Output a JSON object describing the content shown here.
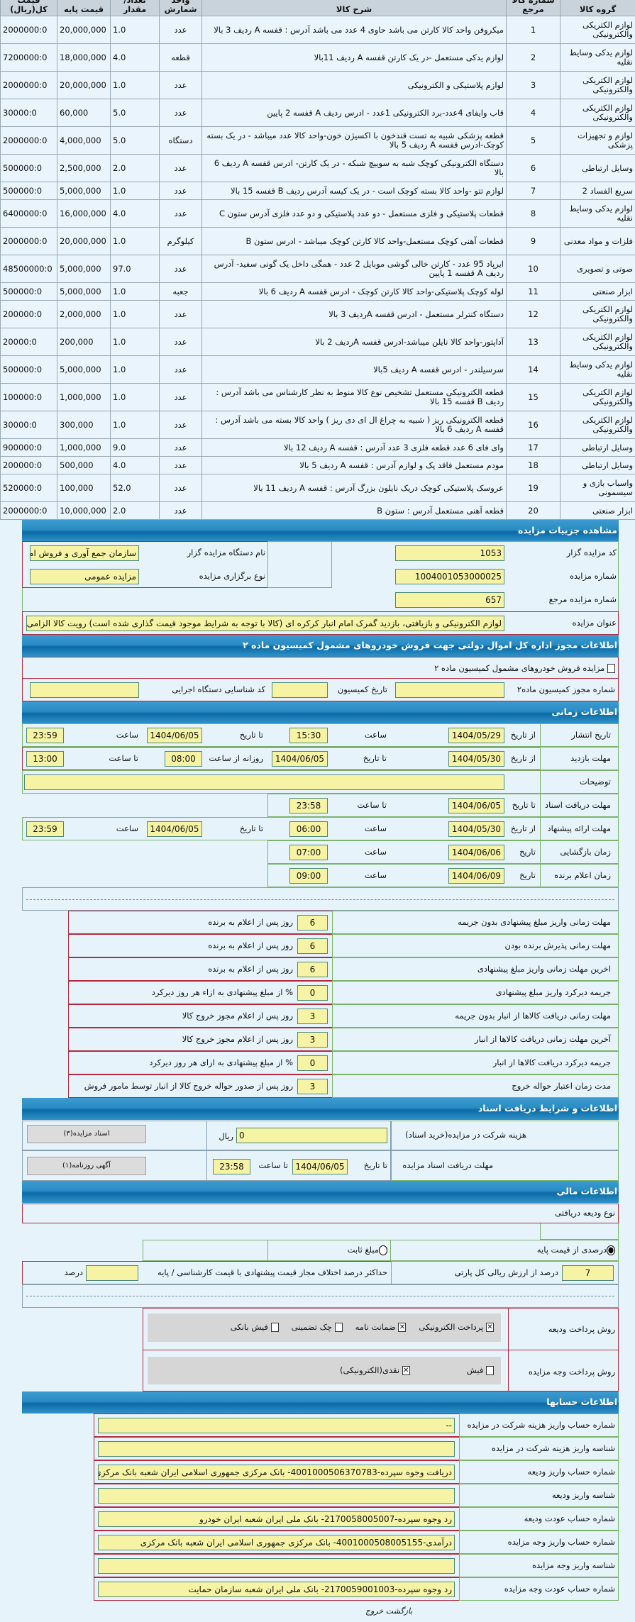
{
  "items_table": {
    "headers": [
      "گروه کالا",
      "شماره کالا مرجع",
      "شرح کالا",
      "واحد شمارش",
      "تعداد/مقدار",
      "قیمت پایه",
      "قیمت کل(ریال)"
    ],
    "rows": [
      [
        "لوازم الکتریکی والکترونیکی",
        "1",
        "میکروفن واحد کالا کارتن می باشد حاوی 4 عدد می باشد آدرس : قفسه A ردیف 3 بالا",
        "عدد",
        "1.0",
        "20,000,000",
        "2000000:0"
      ],
      [
        "لوازم یدکی وسایط نقلیه",
        "2",
        "لوازم یدکی مستعمل -در یک کارتن قفسه A ردیف 11بالا",
        "قطعه",
        "4.0",
        "18,000,000",
        "7200000:0"
      ],
      [
        "لوازم الکتریکی والکترونیکی",
        "3",
        "لوازم پلاستیکی و الکترونیکی",
        "عدد",
        "1.0",
        "20,000,000",
        "2000000:0"
      ],
      [
        "لوازم الکتریکی والکترونیکی",
        "4",
        "قاب وایفای 4عدد-برد الکترونیکی 1عدد - ادرس ردیف A قفسه 2 پایین",
        "عدد",
        "5.0",
        "60,000",
        "30000:0"
      ],
      [
        "لوازم و تجهیزات پزشکی",
        "5",
        "قطعه پزشکی شبیه به تست قندخون با اکسیژن خون-واحد کالا عدد میباشد - در یک بسته کوچک-ادرس قفسه A ردیف 5 بالا",
        "دستگاه",
        "5.0",
        "4,000,000",
        "2000000:0"
      ],
      [
        "وسایل ارتباطی",
        "6",
        "دستگاه الکترونیکی کوچک شبه به سوییچ شبکه - در یک کارتن- ادرس قفسه A ردیف 6 بالا",
        "عدد",
        "2.0",
        "2,500,000",
        "500000:0"
      ],
      [
        "سریع الفساد 2",
        "7",
        "لوازم تتو -واحد کالا بسته کوچک است - در یک کیسه آدرس ردیف B قفسه 15 بالا",
        "عدد",
        "1.0",
        "5,000,000",
        "500000:0"
      ],
      [
        "لوازم یدکی وسایط نقلیه",
        "8",
        "قطعات پلاستیکی و فلزی مستعمل - دو عدد پلاستیکی و دو عدد فلزی آدرس ستون C",
        "عدد",
        "4.0",
        "16,000,000",
        "6400000:0"
      ],
      [
        "فلزات و مواد معدنی",
        "9",
        "قطعات آهنی کوچک مستعمل-واحد کالا کارتن کوچک میباشد - ادرس ستون B",
        "کیلوگرم",
        "1.0",
        "20,000,000",
        "2000000:0"
      ],
      [
        "صوتی و تصویری",
        "10",
        "ایرپاد 95 عدد - کارتن خالی گوشی موبایل 2 عدد - همگی داخل یک گونی سفید- آدرس ردیف A قفسه 1 پایین",
        "عدد",
        "97.0",
        "5,000,000",
        "48500000:0"
      ],
      [
        "ابزار صنعتی",
        "11",
        "لوله کوچک پلاستیکی-واحد کالا کارتن کوچک - ادرس قفسه A ردیف 6 بالا",
        "جعبه",
        "1.0",
        "5,000,000",
        "500000:0"
      ],
      [
        "لوازم الکتریکی والکترونیکی",
        "12",
        "دستگاه کنترلر مستعمل - ادرس قفسه Aردیف 3 بالا",
        "عدد",
        "1.0",
        "2,000,000",
        "200000:0"
      ],
      [
        "لوازم الکتریکی والکترونیکی",
        "13",
        "آداپتور-واحد کالا نایلن میباشد-ادرس قفسه Aردیف 2 بالا",
        "عدد",
        "1.0",
        "200,000",
        "20000:0"
      ],
      [
        "لوازم یدکی وسایط نقلیه",
        "14",
        "سرسیلندر - ادرس قفسه A ردیف 5بالا",
        "عدد",
        "1.0",
        "5,000,000",
        "500000:0"
      ],
      [
        "لوازم الکتریکی والکترونیکی",
        "15",
        "قطعه الکترونیکی مستعمل تشخیص نوع کالا منوط به نظر کارشناس می باشد آدرس : ردیف B قفسه 15 بالا",
        "عدد",
        "1.0",
        "1,000,000",
        "100000:0"
      ],
      [
        "لوازم الکتریکی والکترونیکی",
        "16",
        "قطعه الکترونیکی ریز ( شبیه به چراغ ال ای دی ریز ) واحد کالا بسته می باشد آدرس : قفسه A ردیف 6 بالا",
        "عدد",
        "1.0",
        "300,000",
        "30000:0"
      ],
      [
        "وسایل ارتباطی",
        "17",
        "وای فای 6 عدد قطعه فلزی 3 عدد آدرس : قفسه A ردیف 12 بالا",
        "عدد",
        "9.0",
        "1,000,000",
        "900000:0"
      ],
      [
        "وسایل ارتباطی",
        "18",
        "مودم مستعمل فاقد پک و لوازم آدرس : قفسه A ردیف 5 بالا",
        "عدد",
        "4.0",
        "500,000",
        "200000:0"
      ],
      [
        "واسباب بازی و سیسمونی",
        "19",
        "عروسک پلاستیکی کوچک دریک نایلون بزرگ آدرس : قفسه A ردیف 11 بالا",
        "عدد",
        "52.0",
        "100,000",
        "520000:0"
      ],
      [
        "ابزار صنعتی",
        "20",
        "قطعه آهنی مستعمل آدرس : ستون B",
        "عدد",
        "2.0",
        "10,000,000",
        "2000000:0"
      ]
    ]
  },
  "details": {
    "title": "مشاهده جزییات مزایده",
    "code_label": "کد مزایده گزار",
    "code": "1053",
    "org_label": "نام دستگاه مزایده گزار",
    "org": "سازمان جمع آوری و فروش امو",
    "number_label": "شماره مزایده",
    "number": "1004001053000025",
    "type_label": "نوع برگزاری مزایده",
    "type": "مزایده عمومی",
    "ref_label": "شماره مزایده مرجع",
    "ref": "657",
    "subject_label": "عنوان مزایده",
    "subject": "لوازم الکترونیکی و بازیافتی، بازدید گمرک امام انبار کرکره ای (کالا با توجه به شرایط موجود قیمت گذاری شده است) رویت کالا الزامی مو"
  },
  "commission": {
    "title": "اطلاعات مجوز اداره کل اموال دولتی جهت فروش خودروهای مشمول کمیسیون ماده ۲",
    "checkbox_label": "مزایده فروش خودروهای مشمول کمیسیون ماده ۲",
    "checked": false,
    "permit_label": "شماره مجوز کمیسیون ماده۲",
    "permit": "",
    "date_label": "تاریخ کمیسیون",
    "date": "",
    "exec_label": "کد شناسایی دستگاه اجرایی",
    "exec": ""
  },
  "timing": {
    "title": "اطلاعات زمانی",
    "from_date": "از تاریخ",
    "to_date": "تا تاریخ",
    "date": "تاریخ",
    "time": "ساعت",
    "to_time": "تا ساعت",
    "daily_from": "روزانه از ساعت",
    "publish_label": "تاریخ انتشار",
    "publish_from": "1404/05/29",
    "publish_from_time": "15:30",
    "publish_to": "1404/06/05",
    "publish_to_time": "23:59",
    "visit_label": "مهلت بازدید",
    "visit_from": "1404/05/30",
    "visit_to": "1404/06/05",
    "visit_hour_from": "08:00",
    "visit_hour_to": "13:00",
    "notes_label": "توضیحات",
    "notes": "",
    "docs_label": "مهلت دریافت اسناد",
    "docs_to": "1404/06/05",
    "docs_to_time": "23:58",
    "offer_label": "مهلت ارائه پیشنهاد",
    "offer_from": "1404/05/30",
    "offer_from_time": "06:00",
    "offer_to": "1404/06/05",
    "offer_to_time": "23:59",
    "open_label": "زمان بازگشایی",
    "open_date": "1404/06/06",
    "open_time": "07:00",
    "winner_label": "زمان اعلام برنده",
    "winner_date": "1404/06/09",
    "winner_time": "09:00",
    "terms": [
      {
        "label": "مهلت زمانی واریز مبلغ پیشنهادی بدون جریمه",
        "value": "6",
        "suffix": "روز پس از اعلام به برنده"
      },
      {
        "label": "مهلت زمانی پذیرش برنده بودن",
        "value": "6",
        "suffix": "روز پس از اعلام به برنده"
      },
      {
        "label": "اخرین مهلت زمانی واریز مبلغ پیشنهادی",
        "value": "6",
        "suffix": "روز پس از اعلام به برنده"
      },
      {
        "label": "جریمه دیرکرد واریز مبلغ پیشنهادی",
        "value": "0",
        "suffix": "% از مبلغ پیشنهادی به ازاء هر روز دیرکرد"
      },
      {
        "label": "مهلت زمانی دریافت کالاها از انبار بدون جریمه",
        "value": "3",
        "suffix": "روز پس از اعلام مجوز خروج کالا"
      },
      {
        "label": "آخرین مهلت زمانی دریافت کالاها از انبار",
        "value": "3",
        "suffix": "روز پس از اعلام مجوز خروج کالا"
      },
      {
        "label": "جریمه دیرکرد دریافت کالاها از انبار",
        "value": "0",
        "suffix": "% از مبلغ پیشنهادی به ازای هر روز دیرکرد"
      },
      {
        "label": "مدت زمان اعتبار حواله خروج",
        "value": "3",
        "suffix": "روز پس از صدور حواله خروج کالا از انبار توسط مامور فروش"
      }
    ]
  },
  "documents": {
    "title": "اطلاعات و شرایط دریافت اسناد",
    "fee_label": "هزینه شرکت در مزایده(خرید اسناد)",
    "fee": "0",
    "fee_unit": "ریال",
    "docs_button": "اسناد مزایده(۳)",
    "deadline_label": "مهلت دریافت اسناد مزایده",
    "to_date": "تا تاریخ",
    "deadline_date": "1404/06/05",
    "to_time": "تا ساعت",
    "deadline_time": "23:58",
    "ad_button": "آگهی روزنامه(۱)"
  },
  "financial": {
    "title": "اطلاعات مالی",
    "deposit_type_label": "نوع ودیعه دریافتی",
    "radio_percent": "درصدی از قیمت پایه",
    "radio_fixed": "مبلغ ثابت",
    "selected": "percent",
    "percent_value": "7",
    "percent_label": "درصد از ارزش ریالی کل پارتی",
    "max_diff_label": "حداکثر درصد اختلاف مجاز قیمت پیشنهادی با قیمت کارشناسی / پایه",
    "max_diff": "",
    "max_diff_unit": "درصد",
    "deposit_method_label": "روش پرداخت ودیعه",
    "deposit_methods": [
      {
        "label": "پرداخت الکترونیکی",
        "checked": true
      },
      {
        "label": "ضمانت نامه",
        "checked": true
      },
      {
        "label": "چک تضمینی",
        "checked": false
      },
      {
        "label": "فیش بانکی",
        "checked": false
      }
    ],
    "payment_method_label": "روش پرداخت وجه مزایده",
    "payment_methods": [
      {
        "label": "فیش",
        "checked": false
      },
      {
        "label": "نقدی(الکترونیکی)",
        "checked": true
      }
    ]
  },
  "accounts": {
    "title": "اطلاعات حسابها",
    "rows": [
      {
        "label": "شماره حساب واریز هزینه شرکت در مزایده",
        "value": "--"
      },
      {
        "label": "شناسه واریز هزینه شرکت در مزایده",
        "value": ""
      },
      {
        "label": "شماره حساب واریز ودیعه",
        "value": "دریافت وجوه سپرده-4001000506370783- بانک مرکزی جمهوری اسلامی ایران شعبه بانک مرکزی"
      },
      {
        "label": "شناسه واریز ودیعه",
        "value": ""
      },
      {
        "label": "شماره حساب عودت ودیعه",
        "value": "رد وجوه سپرده-2170058005007- بانک ملی ایران شعبه ایران خودرو"
      },
      {
        "label": "شماره حساب واریز وجه مزایده",
        "value": "درآمدی-4001000508005155- بانک مرکزی جمهوری اسلامی ایران شعبه بانک مرکزی"
      },
      {
        "label": "شناسه واریز وجه مزایده",
        "value": ""
      },
      {
        "label": "شماره حساب عودت وجه مزایده",
        "value": "رد وجوه سپرده-2170059001003- بانک ملی ایران شعبه سازمان حمایت"
      }
    ]
  },
  "footer": {
    "back": "بازگشت",
    "exit": "خروج"
  }
}
